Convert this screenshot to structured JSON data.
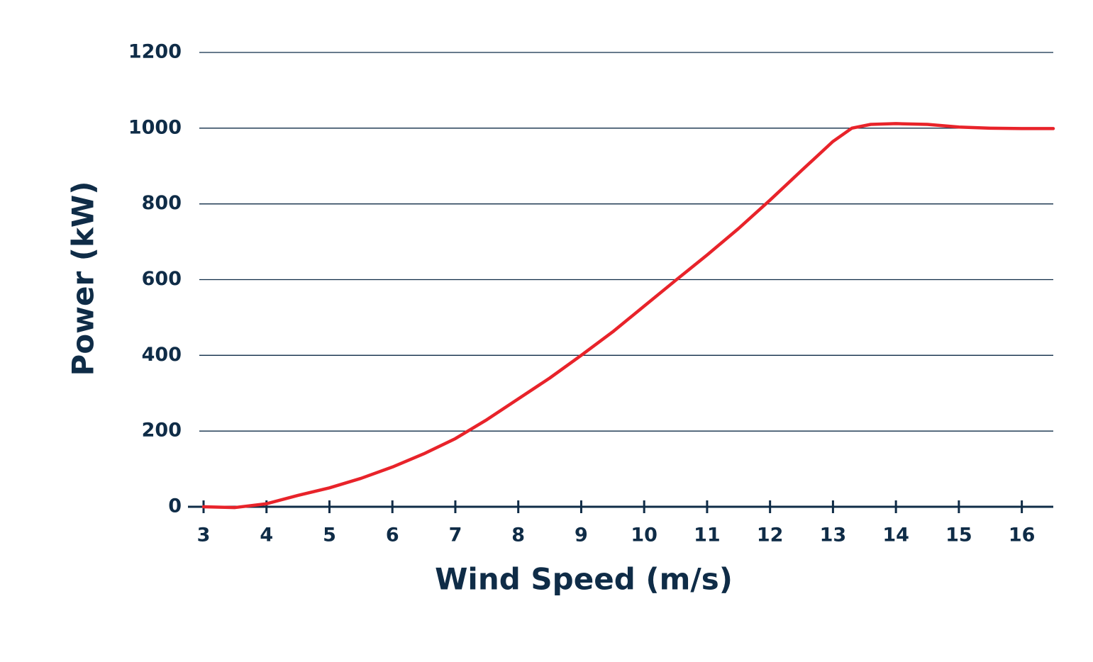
{
  "chart_data": {
    "type": "line",
    "x_label": "Wind Speed (m/s)",
    "y_label": "Power (kW)",
    "x": [
      3,
      3.5,
      4,
      4.5,
      5,
      5.5,
      6,
      6.5,
      7,
      7.5,
      8,
      8.5,
      9,
      9.5,
      10,
      10.5,
      11,
      11.5,
      12,
      12.5,
      13,
      13.3,
      13.6,
      14,
      14.5,
      15,
      15.5,
      16,
      16.5
    ],
    "series": [
      {
        "name": "Power",
        "color": "#e8232a",
        "values": [
          0,
          -2,
          8,
          30,
          50,
          75,
          105,
          140,
          180,
          230,
          285,
          340,
          400,
          462,
          530,
          598,
          665,
          735,
          810,
          888,
          965,
          1000,
          1010,
          1012,
          1010,
          1003,
          1000,
          999,
          999
        ]
      }
    ],
    "xlim": [
      3,
      16.5
    ],
    "ylim": [
      0,
      1200
    ],
    "xticks": [
      3,
      4,
      5,
      6,
      7,
      8,
      9,
      10,
      11,
      12,
      13,
      14,
      15,
      16
    ],
    "yticks": [
      0,
      200,
      400,
      600,
      800,
      1000,
      1200
    ],
    "grid": true
  }
}
